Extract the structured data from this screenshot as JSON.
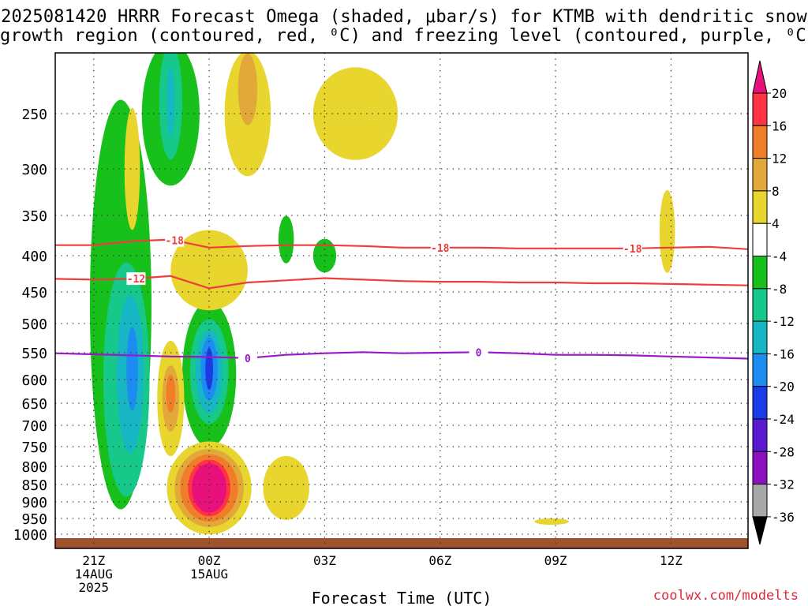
{
  "title": {
    "line1": "2025081420 HRRR Forecast Omega (shaded, μbar/s) for KTMB with dendritic snow",
    "line2": "growth region (contoured, red, ⁰C) and freezing level (contoured, purple, ⁰C)"
  },
  "credit": "coolwx.com/modelts",
  "chart_data": {
    "type": "heatmap",
    "station": "KTMB",
    "model": "HRRR",
    "init": "2025081420",
    "xlabel": "Forecast Time (UTC)",
    "ylabel": "",
    "x_unit": "hours since 2025-08-14 20Z",
    "xlim": [
      0,
      18
    ],
    "y_scale": "pressure (hPa), inverted",
    "ylim": [
      1025,
      200
    ],
    "x_ticks": [
      {
        "x": 1,
        "lines": [
          "21Z",
          "14AUG",
          "2025"
        ]
      },
      {
        "x": 4,
        "lines": [
          "00Z",
          "15AUG"
        ]
      },
      {
        "x": 7,
        "lines": [
          "03Z"
        ]
      },
      {
        "x": 10,
        "lines": [
          "06Z"
        ]
      },
      {
        "x": 13,
        "lines": [
          "09Z"
        ]
      },
      {
        "x": 16,
        "lines": [
          "12Z"
        ]
      }
    ],
    "y_ticks": [
      250,
      300,
      350,
      400,
      450,
      500,
      550,
      600,
      650,
      700,
      750,
      800,
      850,
      900,
      950,
      1000
    ],
    "grid": true,
    "colorbar": {
      "labels": [
        "20",
        "16",
        "12",
        "8",
        "4",
        "-4",
        "-8",
        "-12",
        "-16",
        "-20",
        "-24",
        "-28",
        "-32",
        "-36"
      ],
      "colors": [
        "#ff3344",
        "#f07d2a",
        "#e2a93a",
        "#e8d52e",
        "#ffffff",
        "#17c01b",
        "#16c88a",
        "#16b6c5",
        "#1c8cf0",
        "#1a3ce8",
        "#5a1ad0",
        "#8c10c0",
        "#a8a8a8"
      ],
      "top_color": "#e8117c",
      "bottom_color": "#000000"
    },
    "omega_regions": [
      {
        "level": -4,
        "cx": 1.7,
        "cy": 470,
        "rx": 0.8,
        "ry": 320
      },
      {
        "level": -8,
        "cx": 1.85,
        "cy": 600,
        "rx": 0.6,
        "ry": 220
      },
      {
        "level": -12,
        "cx": 1.95,
        "cy": 590,
        "rx": 0.35,
        "ry": 150
      },
      {
        "level": -16,
        "cx": 2.0,
        "cy": 580,
        "rx": 0.15,
        "ry": 80
      },
      {
        "level": -4,
        "cx": 3.0,
        "cy": 250,
        "rx": 0.75,
        "ry": 80
      },
      {
        "level": -8,
        "cx": 3.0,
        "cy": 240,
        "rx": 0.3,
        "ry": 60
      },
      {
        "level": -12,
        "cx": 3.0,
        "cy": 240,
        "rx": 0.1,
        "ry": 30
      },
      {
        "level": -4,
        "cx": 4.0,
        "cy": 590,
        "rx": 0.7,
        "ry": 140
      },
      {
        "level": -8,
        "cx": 4.0,
        "cy": 585,
        "rx": 0.5,
        "ry": 100
      },
      {
        "level": -12,
        "cx": 4.0,
        "cy": 585,
        "rx": 0.35,
        "ry": 80
      },
      {
        "level": -16,
        "cx": 4.0,
        "cy": 580,
        "rx": 0.22,
        "ry": 60
      },
      {
        "level": -20,
        "cx": 4.0,
        "cy": 580,
        "rx": 0.1,
        "ry": 40
      },
      {
        "level": -4,
        "cx": 6.0,
        "cy": 380,
        "rx": 0.2,
        "ry": 30
      },
      {
        "level": -4,
        "cx": 7.0,
        "cy": 400,
        "rx": 0.3,
        "ry": 22
      },
      {
        "level": 4,
        "cx": 4.0,
        "cy": 860,
        "rx": 1.1,
        "ry": 130
      },
      {
        "level": 8,
        "cx": 4.0,
        "cy": 860,
        "rx": 0.9,
        "ry": 110
      },
      {
        "level": 12,
        "cx": 4.0,
        "cy": 860,
        "rx": 0.75,
        "ry": 95
      },
      {
        "level": 16,
        "cx": 4.0,
        "cy": 860,
        "rx": 0.55,
        "ry": 80
      },
      {
        "level": 20,
        "cx": 4.0,
        "cy": 860,
        "rx": 0.45,
        "ry": 70
      },
      {
        "level": 4,
        "cx": 3.0,
        "cy": 640,
        "rx": 0.35,
        "ry": 120
      },
      {
        "level": 8,
        "cx": 3.0,
        "cy": 640,
        "rx": 0.22,
        "ry": 70
      },
      {
        "level": 12,
        "cx": 3.0,
        "cy": 630,
        "rx": 0.12,
        "ry": 40
      },
      {
        "level": 4,
        "cx": 5.0,
        "cy": 250,
        "rx": 0.6,
        "ry": 60
      },
      {
        "level": 8,
        "cx": 5.0,
        "cy": 230,
        "rx": 0.25,
        "ry": 30
      },
      {
        "level": 4,
        "cx": 4.0,
        "cy": 420,
        "rx": 1.0,
        "ry": 55
      },
      {
        "level": 4,
        "cx": 6.0,
        "cy": 860,
        "rx": 0.6,
        "ry": 90
      },
      {
        "level": 4,
        "cx": 7.8,
        "cy": 250,
        "rx": 1.1,
        "ry": 40
      },
      {
        "level": 4,
        "cx": 2.0,
        "cy": 300,
        "rx": 0.2,
        "ry": 60
      },
      {
        "level": 4,
        "cx": 12.9,
        "cy": 960,
        "rx": 0.45,
        "ry": 10
      },
      {
        "level": 4,
        "cx": 15.9,
        "cy": 370,
        "rx": 0.2,
        "ry": 50
      }
    ],
    "contours": [
      {
        "name": "-18",
        "color": "#ee3d3d",
        "x": [
          0,
          1,
          2,
          3,
          4,
          5,
          6,
          7,
          8,
          9,
          10,
          11,
          12,
          13,
          14,
          15,
          16,
          17,
          18
        ],
        "y": [
          387,
          387,
          382,
          380,
          390,
          388,
          387,
          387,
          388,
          390,
          390,
          390,
          391,
          391,
          391,
          391,
          390,
          389,
          392
        ],
        "label_x": [
          3.1,
          10,
          15
        ]
      },
      {
        "name": "-12",
        "color": "#ee3d3d",
        "x": [
          0,
          1,
          2,
          3,
          4,
          5,
          6,
          7,
          8,
          9,
          10,
          11,
          12,
          13,
          14,
          15,
          16,
          17,
          18
        ],
        "y": [
          432,
          433,
          432,
          428,
          445,
          437,
          434,
          431,
          433,
          435,
          436,
          436,
          437,
          437,
          438,
          438,
          439,
          440,
          441
        ],
        "label_x": [
          2.1
        ]
      },
      {
        "name": "0",
        "color": "#9919c9",
        "x": [
          0,
          1,
          2,
          3,
          4,
          5,
          6,
          7,
          8,
          9,
          10,
          11,
          12,
          13,
          14,
          15,
          16,
          17,
          18
        ],
        "y": [
          551,
          553,
          555,
          557,
          558,
          560,
          554,
          551,
          549,
          551,
          550,
          549,
          551,
          554,
          554,
          555,
          557,
          559,
          561
        ],
        "label_x": [
          5,
          11
        ]
      }
    ]
  }
}
